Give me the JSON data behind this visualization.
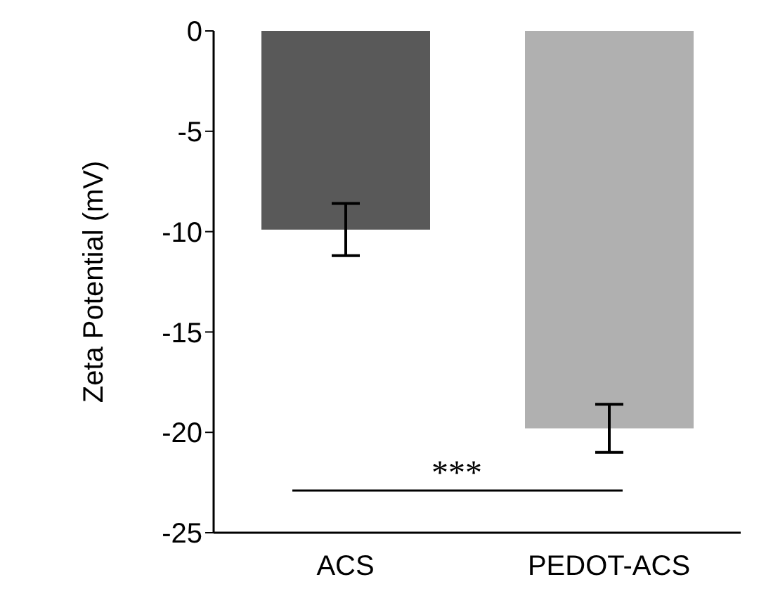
{
  "chart_data": {
    "type": "bar",
    "ylabel": "Zeta Potential (mV)",
    "categories": [
      "ACS",
      "PEDOT-ACS"
    ],
    "values": [
      -9.9,
      -19.8
    ],
    "errors": [
      1.3,
      1.2
    ],
    "colors": [
      "#595959",
      "#b0b0b0"
    ],
    "ylim": [
      -25,
      0
    ],
    "yticks": [
      -25,
      -20,
      -15,
      -10,
      -5,
      0
    ],
    "annotations": [
      "***"
    ]
  }
}
